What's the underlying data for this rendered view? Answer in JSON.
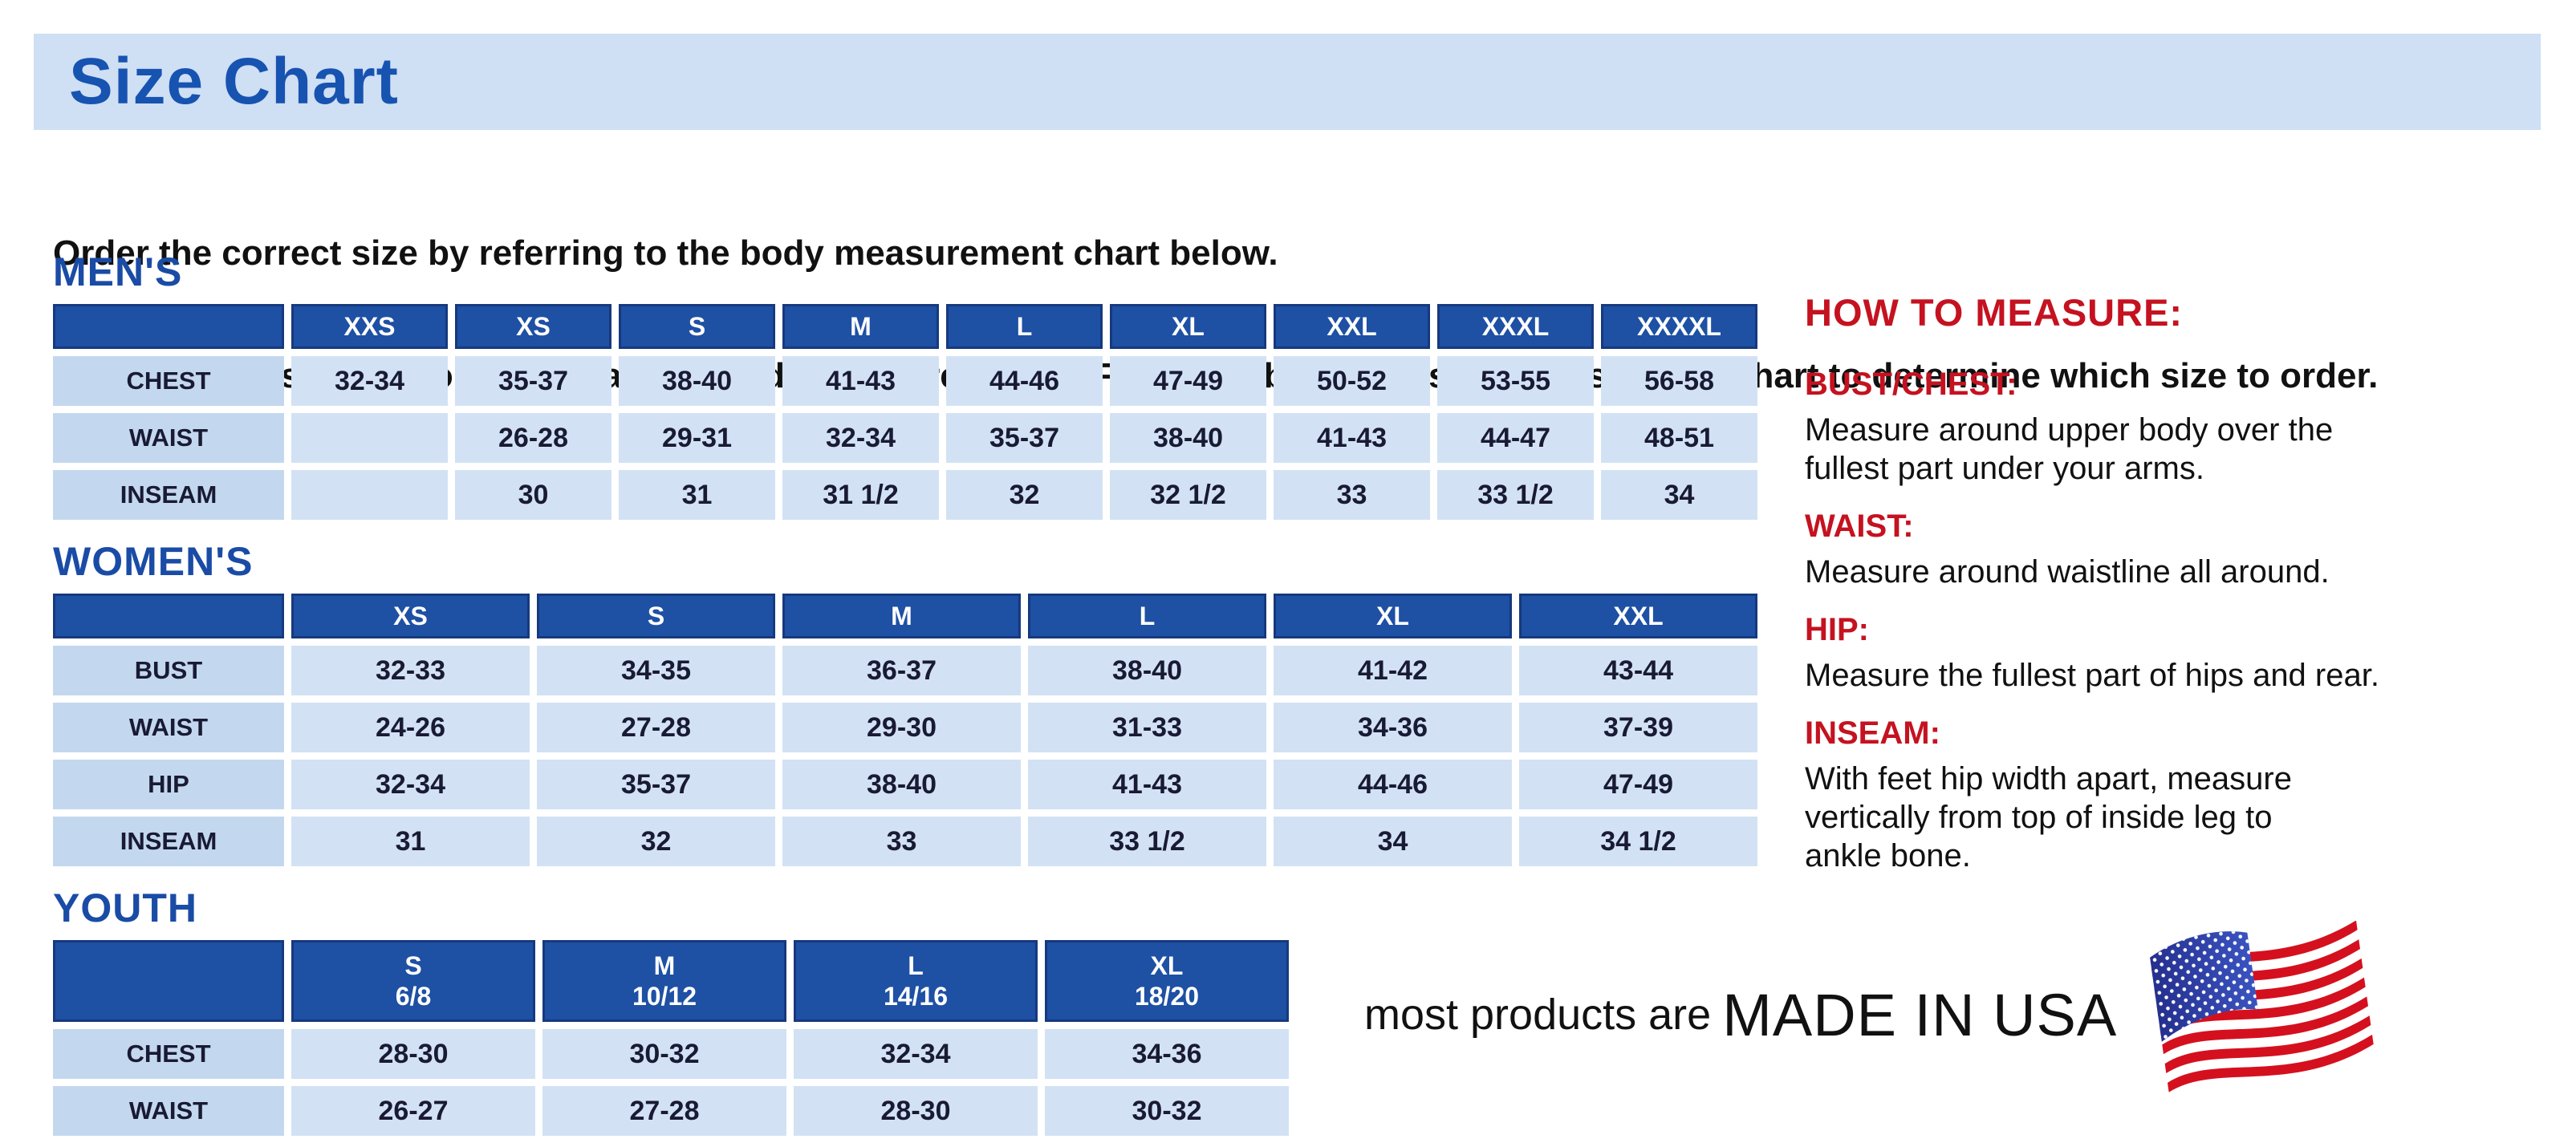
{
  "page": {
    "title": "Size Chart",
    "intro_line1": "Order the correct size by referring to the body measurement chart below.",
    "intro_line2": "Measurements shown on size chart are body measurements.  Find your body measurements on the chart to determine which size to order."
  },
  "tables": {
    "mens": {
      "heading": "MEN'S",
      "columns": [
        "XXS",
        "XS",
        "S",
        "M",
        "L",
        "XL",
        "XXL",
        "XXXL",
        "XXXXL"
      ],
      "rows": [
        {
          "label": "CHEST",
          "values": [
            "32-34",
            "35-37",
            "38-40",
            "41-43",
            "44-46",
            "47-49",
            "50-52",
            "53-55",
            "56-58"
          ]
        },
        {
          "label": "WAIST",
          "values": [
            "",
            "26-28",
            "29-31",
            "32-34",
            "35-37",
            "38-40",
            "41-43",
            "44-47",
            "48-51"
          ]
        },
        {
          "label": "INSEAM",
          "values": [
            "",
            "30",
            "31",
            "31 1/2",
            "32",
            "32 1/2",
            "33",
            "33 1/2",
            "34"
          ]
        }
      ]
    },
    "womens": {
      "heading": "WOMEN'S",
      "columns": [
        "XS",
        "S",
        "M",
        "L",
        "XL",
        "XXL"
      ],
      "rows": [
        {
          "label": "BUST",
          "values": [
            "32-33",
            "34-35",
            "36-37",
            "38-40",
            "41-42",
            "43-44"
          ]
        },
        {
          "label": "WAIST",
          "values": [
            "24-26",
            "27-28",
            "29-30",
            "31-33",
            "34-36",
            "37-39"
          ]
        },
        {
          "label": "HIP",
          "values": [
            "32-34",
            "35-37",
            "38-40",
            "41-43",
            "44-46",
            "47-49"
          ]
        },
        {
          "label": "INSEAM",
          "values": [
            "31",
            "32",
            "33",
            "33 1/2",
            "34",
            "34 1/2"
          ]
        }
      ]
    },
    "youth": {
      "heading": "YOUTH",
      "columns": [
        {
          "size": "S",
          "range": "6/8"
        },
        {
          "size": "M",
          "range": "10/12"
        },
        {
          "size": "L",
          "range": "14/16"
        },
        {
          "size": "XL",
          "range": "18/20"
        }
      ],
      "rows": [
        {
          "label": "CHEST",
          "values": [
            "28-30",
            "30-32",
            "32-34",
            "34-36"
          ]
        },
        {
          "label": "WAIST",
          "values": [
            "26-27",
            "27-28",
            "28-30",
            "30-32"
          ]
        }
      ]
    }
  },
  "how_to_measure": {
    "heading": "HOW TO MEASURE:",
    "sections": [
      {
        "label": "BUST/CHEST:",
        "lines": [
          "Measure around upper body over the",
          "fullest part under your arms."
        ]
      },
      {
        "label": "WAIST:",
        "lines": [
          "Measure around waistline all around."
        ]
      },
      {
        "label": "HIP:",
        "lines": [
          "Measure the fullest part of hips and rear."
        ]
      },
      {
        "label": "INSEAM:",
        "lines": [
          "With feet hip width apart, measure",
          "vertically from top of inside leg to",
          "ankle bone."
        ]
      }
    ]
  },
  "footer": {
    "made_in_prefix": "most products are",
    "made_in": "MADE IN USA",
    "flag_icon": "usa-flag-icon"
  },
  "colors": {
    "banner_bg": "#cfdff4",
    "title_blue": "#1753b0",
    "heading_blue": "#1a4ca6",
    "header_cell_blue": "#1e50a4",
    "header_cell_border": "#16397e",
    "label_cell_bg": "#c3d8ef",
    "value_cell_bg": "#d2e2f4",
    "cell_text": "#191a33",
    "accent_red": "#c51220",
    "body_black": "#111111",
    "flag_red": "#d5101e",
    "flag_blue": "#2e3fa3"
  }
}
